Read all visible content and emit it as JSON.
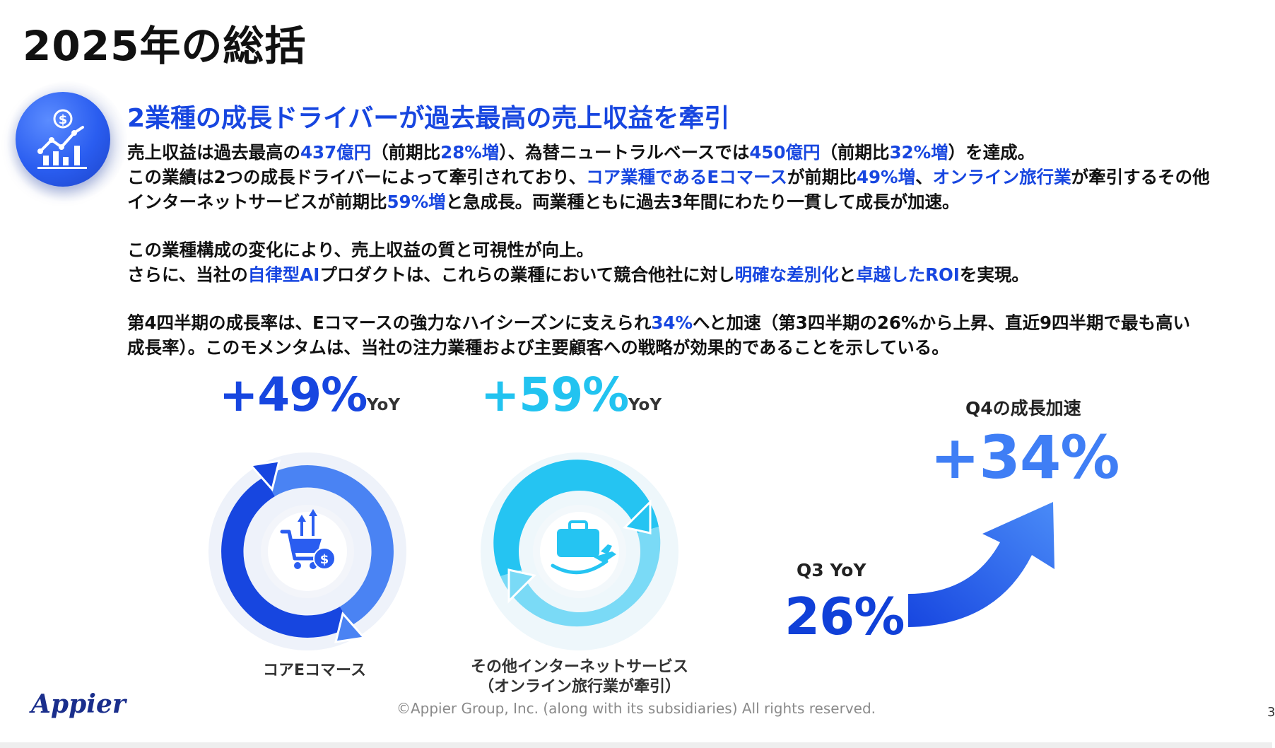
{
  "header": {
    "title": "2025年の総括"
  },
  "section": {
    "subtitle": "2業種の成長ドライバーが過去最高の売上収益を牽引"
  },
  "paragraph1": {
    "line1": [
      {
        "t": "売上収益は過去最高の",
        "hl": false
      },
      {
        "t": "437億円",
        "hl": true
      },
      {
        "t": "（前期比",
        "hl": false
      },
      {
        "t": "28%増",
        "hl": true
      },
      {
        "t": "）、為替ニュートラルベースでは",
        "hl": false
      },
      {
        "t": "450億円",
        "hl": true
      },
      {
        "t": "（前期比",
        "hl": false
      },
      {
        "t": "32%増",
        "hl": true
      },
      {
        "t": "）を達成。",
        "hl": false
      }
    ],
    "line2": [
      {
        "t": "この業績は2つの成長ドライバーによって牽引されており、",
        "hl": false
      },
      {
        "t": "コア業種であるEコマース",
        "hl": true
      },
      {
        "t": "が前期比",
        "hl": false
      },
      {
        "t": "49%増",
        "hl": true
      },
      {
        "t": "、",
        "hl": false
      },
      {
        "t": "オンライン旅行業",
        "hl": true
      },
      {
        "t": "が牽引するその他",
        "hl": false
      }
    ],
    "line3": [
      {
        "t": "インターネットサービスが前期比",
        "hl": false
      },
      {
        "t": "59%増",
        "hl": true
      },
      {
        "t": "と急成長。両業種ともに過去3年間にわたり一貫して成長が加速。",
        "hl": false
      }
    ]
  },
  "paragraph2": {
    "line1": [
      {
        "t": "この業種構成の変化により、売上収益の質と可視性が向上。",
        "hl": false
      }
    ],
    "line2": [
      {
        "t": "さらに、当社の",
        "hl": false
      },
      {
        "t": "自律型AI",
        "hl": true
      },
      {
        "t": "プロダクトは、これらの業種において競合他社に対し",
        "hl": false
      },
      {
        "t": "明確な差別化",
        "hl": true
      },
      {
        "t": "と",
        "hl": false
      },
      {
        "t": "卓越したROI",
        "hl": true
      },
      {
        "t": "を実現。",
        "hl": false
      }
    ]
  },
  "paragraph3": {
    "line1": [
      {
        "t": "第4四半期の成長率は、Eコマースの強力なハイシーズンに支えられ",
        "hl": false
      },
      {
        "t": "34%",
        "hl": true
      },
      {
        "t": "へと加速（第3四半期の26%から上昇、直近9四半期で最も高い",
        "hl": false
      }
    ],
    "line2": [
      {
        "t": "成長率）。このモメンタムは、当社の注力業種および主要顧客への戦略が効果的であることを示している。",
        "hl": false
      }
    ]
  },
  "metrics": {
    "ecommerce": {
      "value": "+49%",
      "yoy": "YoY",
      "caption": "コアEコマース",
      "icon": "shopping-cart-dollar-icon",
      "color": "#1746e0"
    },
    "internet": {
      "value": "+59%",
      "yoy": "YoY",
      "caption_line1": "その他インターネットサービス",
      "caption_line2": "（オンライン旅行業が牽引）",
      "icon": "suitcase-plane-icon",
      "color": "#22c3f0"
    },
    "q4": {
      "label": "Q4の成長加速",
      "value": "+34%",
      "color": "#3f7ef5"
    },
    "q3": {
      "label": "Q3 YoY",
      "value": "26%",
      "color": "#1040d8"
    }
  },
  "footer": {
    "logo": "Appier",
    "copyright": "©Appier Group, Inc. (along with its subsidiaries) All rights reserved.",
    "page": "3"
  }
}
